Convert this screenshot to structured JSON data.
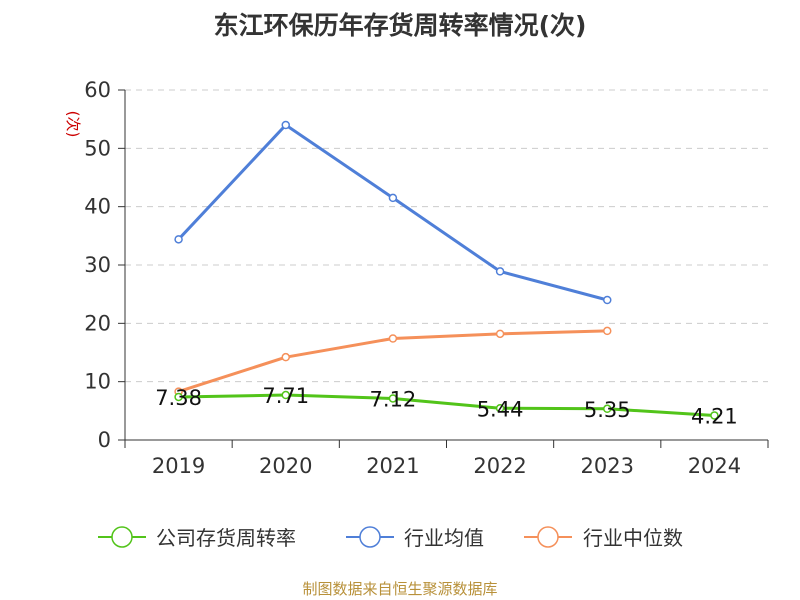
{
  "title": "东江环保历年存货周转率情况(次)",
  "footer": "制图数据来自恒生聚源数据库",
  "chart_data": {
    "type": "line",
    "title": "东江环保历年存货周转率情况(次)",
    "ylabel": "(次)",
    "categories": [
      "2019",
      "2020",
      "2021",
      "2022",
      "2023",
      "2024"
    ],
    "ylim": [
      0,
      60
    ],
    "yticks": [
      0,
      10,
      20,
      30,
      40,
      50,
      60
    ],
    "grid": true,
    "legend_position": "bottom",
    "series": [
      {
        "name": "公司存货周转率",
        "color": "#52c41a",
        "values": [
          7.38,
          7.71,
          7.12,
          5.44,
          5.35,
          4.21
        ],
        "labels": [
          "7.38",
          "7.71",
          "7.12",
          "5.44",
          "5.35",
          "4.21"
        ]
      },
      {
        "name": "行业均值",
        "color": "#4f7fd8",
        "values": [
          34.4,
          54.0,
          41.5,
          28.9,
          24.0,
          null
        ]
      },
      {
        "name": "行业中位数",
        "color": "#f5905a",
        "values": [
          8.3,
          14.2,
          17.4,
          18.2,
          18.7,
          null
        ]
      }
    ]
  }
}
